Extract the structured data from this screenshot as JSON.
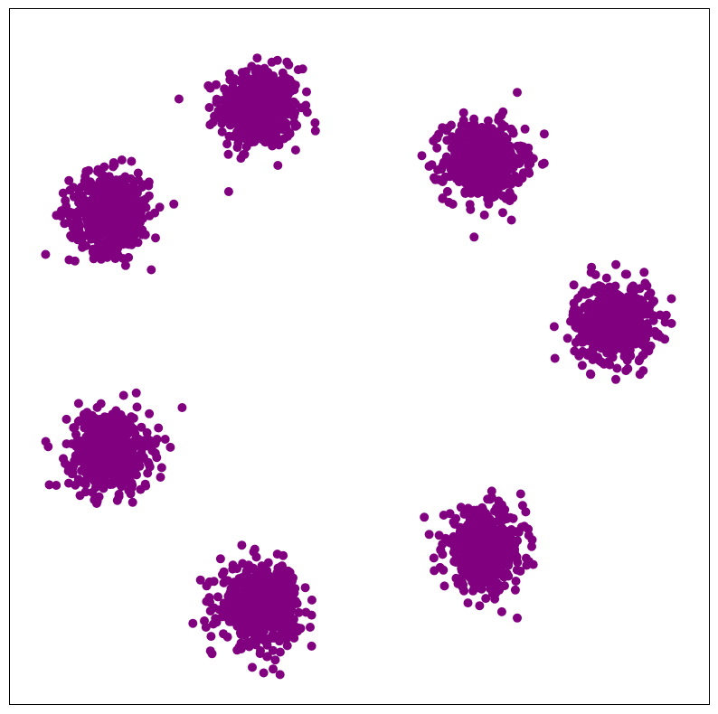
{
  "chart_data": {
    "type": "scatter",
    "title": "",
    "xlabel": "",
    "ylabel": "",
    "xlim": [
      -1.4,
      1.4
    ],
    "ylim": [
      -1.4,
      1.4
    ],
    "grid": false,
    "axes_ticks": false,
    "marker_color": "#800080",
    "series": [
      {
        "point_std": 0.08,
        "clusters": [
          {
            "center": [
              -0.4,
              1.0
            ],
            "count": 500
          },
          {
            "center": [
              0.5,
              0.79
            ],
            "count": 500
          },
          {
            "center": [
              -1.0,
              0.58
            ],
            "count": 500
          },
          {
            "center": [
              1.02,
              0.14
            ],
            "count": 500
          },
          {
            "center": [
              -1.0,
              -0.38
            ],
            "count": 500
          },
          {
            "center": [
              0.5,
              -0.78
            ],
            "count": 500
          },
          {
            "center": [
              -0.4,
              -1.0
            ],
            "count": 500
          }
        ]
      }
    ]
  },
  "colors": {
    "background": "#ffffff",
    "frame": "#000000",
    "points": "#800080"
  }
}
